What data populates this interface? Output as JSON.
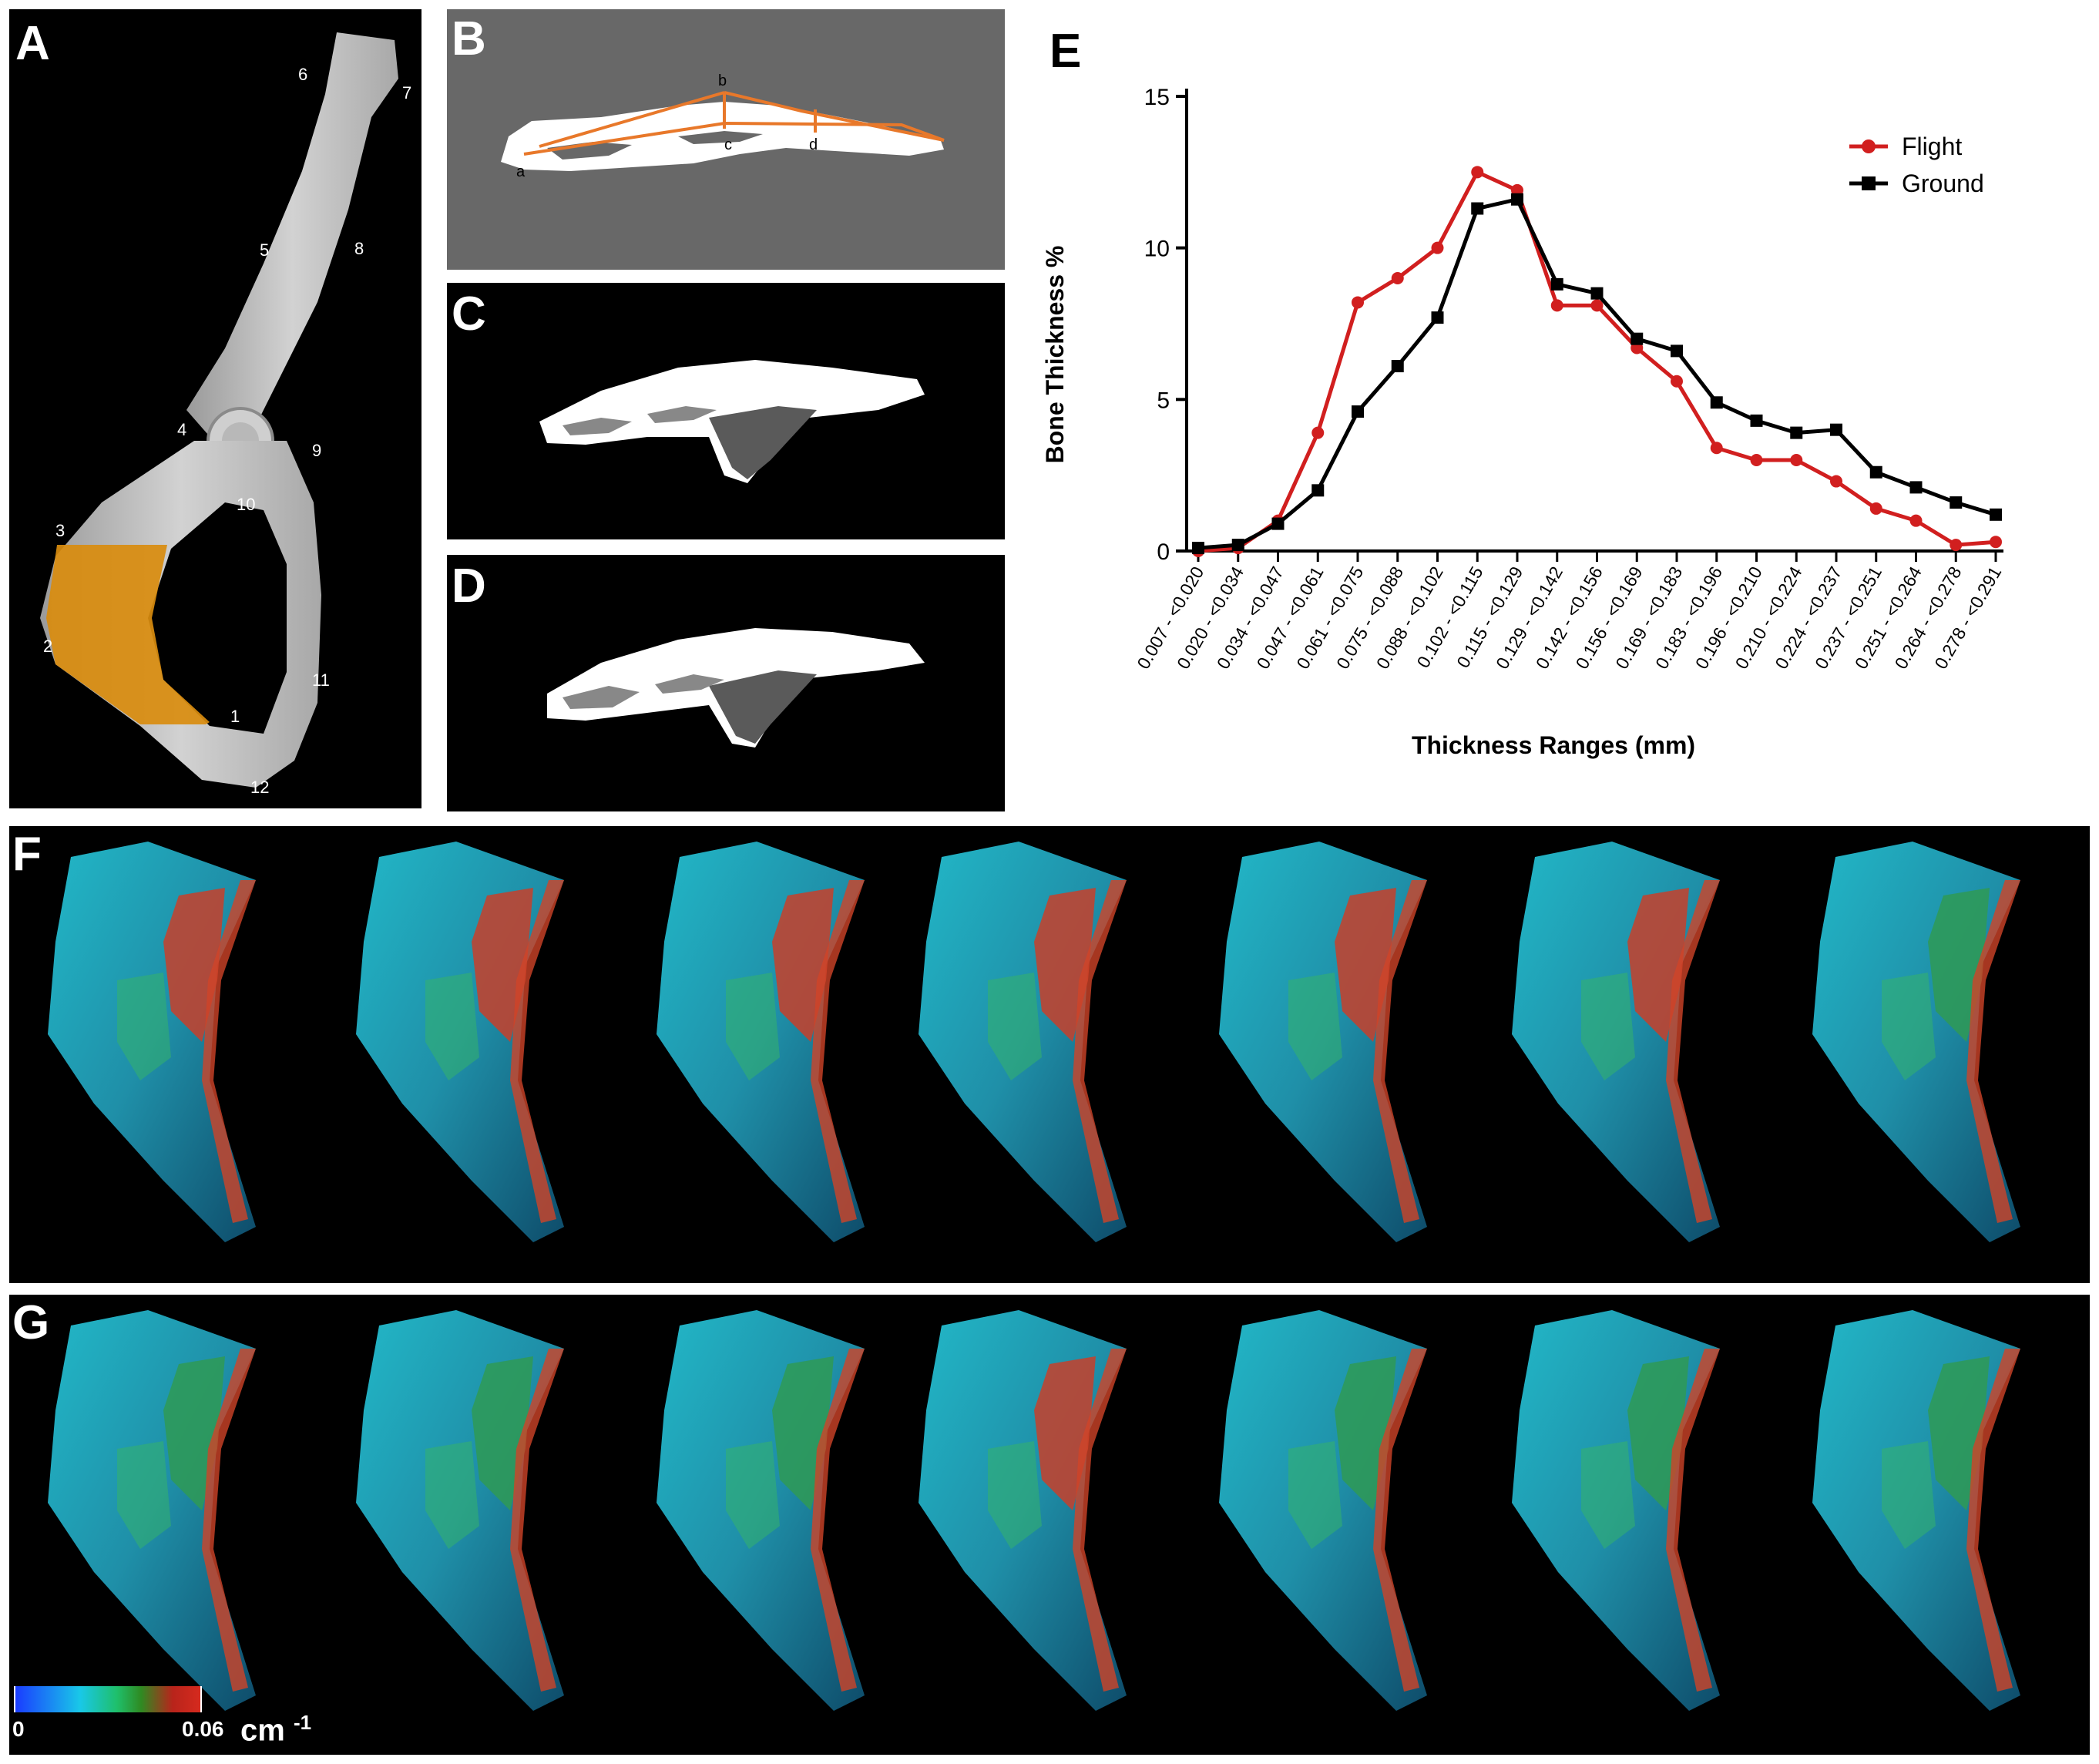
{
  "panels": {
    "A": {
      "label": "A",
      "numbers": [
        "1",
        "2",
        "3",
        "4",
        "5",
        "6",
        "7",
        "8",
        "9",
        "10",
        "11",
        "12"
      ]
    },
    "B": {
      "label": "B",
      "points": [
        "a",
        "b",
        "c",
        "d"
      ]
    },
    "C": {
      "label": "C"
    },
    "D": {
      "label": "D"
    },
    "E": {
      "label": "E"
    },
    "F": {
      "label": "F"
    },
    "G": {
      "label": "G"
    }
  },
  "chart_data": {
    "type": "line",
    "xlabel": "Thickness Ranges (mm)",
    "ylabel": "Bone Thickness %",
    "ylim": [
      0,
      15
    ],
    "yticks": [
      "0",
      "5",
      "10",
      "15"
    ],
    "categories": [
      "0.007 - <0.020",
      "0.020 - <0.034",
      "0.034 - <0.047",
      "0.047 - <0.061",
      "0.061 - <0.075",
      "0.075 - <0.088",
      "0.088 - <0.102",
      "0.102 - <0.115",
      "0.115 - <0.129",
      "0.129 - <0.142",
      "0.142 - <0.156",
      "0.156 - <0.169",
      "0.169 - <0.183",
      "0.183 - <0.196",
      "0.196 - <0.210",
      "0.210 - <0.224",
      "0.224 - <0.237",
      "0.237 - <0.251",
      "0.251 - <0.264",
      "0.264 - <0.278",
      "0.278 - <0.291"
    ],
    "legend_position": "top-right",
    "series": [
      {
        "name": "Flight",
        "color": "#d11f1f",
        "marker": "circle",
        "values": [
          0.0,
          0.1,
          1.0,
          3.9,
          8.2,
          9.0,
          10.0,
          12.5,
          11.9,
          8.1,
          8.1,
          6.7,
          5.6,
          3.4,
          3.0,
          3.0,
          2.3,
          1.4,
          1.0,
          0.2,
          0.3
        ]
      },
      {
        "name": "Ground",
        "color": "#000000",
        "marker": "square",
        "values": [
          0.1,
          0.2,
          0.9,
          2.0,
          4.6,
          6.1,
          7.7,
          11.3,
          11.6,
          8.8,
          8.5,
          7.0,
          6.6,
          4.9,
          4.3,
          3.9,
          4.0,
          2.6,
          2.1,
          1.6,
          1.2
        ]
      }
    ]
  },
  "colorbar": {
    "min": "0",
    "max": "0.06",
    "unit": "cm",
    "exponent": "-1"
  }
}
